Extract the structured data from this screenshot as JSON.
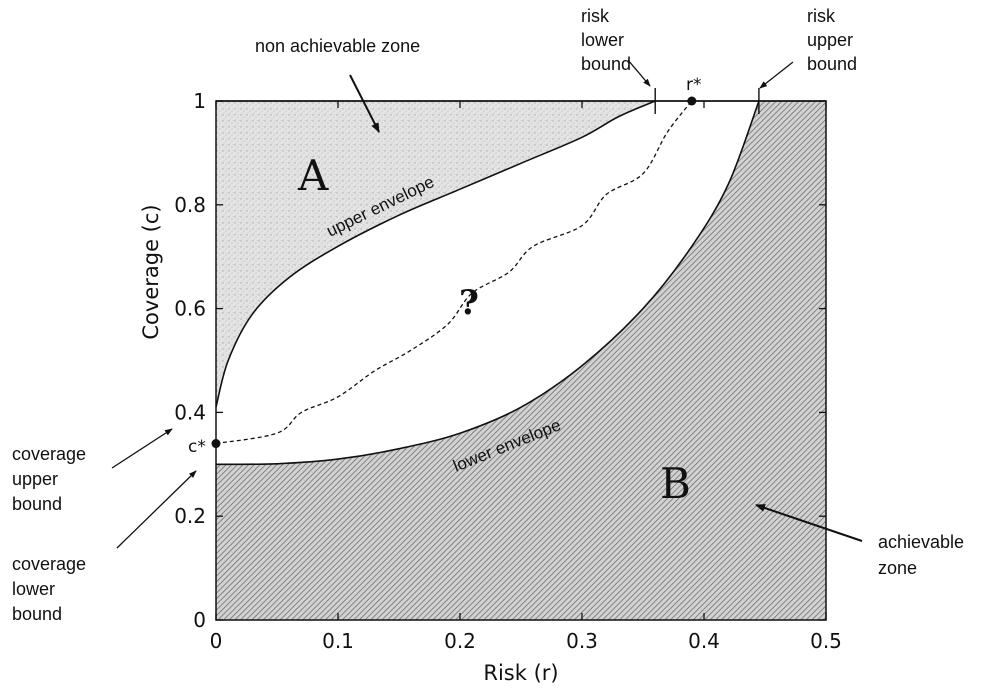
{
  "chart_data": {
    "type": "area",
    "xlabel": "Risk (r)",
    "ylabel": "Coverage (c)",
    "xlim": [
      0,
      0.5
    ],
    "ylim": [
      0,
      1
    ],
    "x_ticks": [
      "0",
      "0.1",
      "0.2",
      "0.3",
      "0.4",
      "0.5"
    ],
    "y_ticks": [
      "0",
      "0.2",
      "0.4",
      "0.6",
      "0.8",
      "1"
    ],
    "zones": [
      {
        "letter": "A",
        "name": "non achievable zone"
      },
      {
        "letter": "B",
        "name": "achievable zone"
      }
    ],
    "upper_envelope": {
      "label": "upper envelope",
      "points": [
        [
          0.0,
          0.41
        ],
        [
          0.01,
          0.5
        ],
        [
          0.03,
          0.59
        ],
        [
          0.06,
          0.66
        ],
        [
          0.1,
          0.72
        ],
        [
          0.15,
          0.78
        ],
        [
          0.2,
          0.83
        ],
        [
          0.25,
          0.88
        ],
        [
          0.3,
          0.93
        ],
        [
          0.33,
          0.97
        ],
        [
          0.36,
          1.0
        ]
      ]
    },
    "lower_envelope": {
      "label": "lower envelope",
      "points": [
        [
          0.0,
          0.3
        ],
        [
          0.05,
          0.301
        ],
        [
          0.1,
          0.31
        ],
        [
          0.15,
          0.33
        ],
        [
          0.2,
          0.36
        ],
        [
          0.25,
          0.41
        ],
        [
          0.3,
          0.49
        ],
        [
          0.35,
          0.6
        ],
        [
          0.39,
          0.72
        ],
        [
          0.42,
          0.84
        ],
        [
          0.445,
          1.0
        ]
      ]
    },
    "path": {
      "label": "?",
      "points": [
        [
          0.0,
          0.34
        ],
        [
          0.05,
          0.36
        ],
        [
          0.07,
          0.4
        ],
        [
          0.1,
          0.43
        ],
        [
          0.13,
          0.48
        ],
        [
          0.16,
          0.52
        ],
        [
          0.19,
          0.57
        ],
        [
          0.21,
          0.63
        ],
        [
          0.24,
          0.67
        ],
        [
          0.26,
          0.72
        ],
        [
          0.3,
          0.76
        ],
        [
          0.32,
          0.82
        ],
        [
          0.35,
          0.86
        ],
        [
          0.37,
          0.94
        ],
        [
          0.39,
          1.0
        ]
      ]
    },
    "special_points": [
      {
        "label": "c*",
        "x": 0.0,
        "y": 0.34
      },
      {
        "label": "r*",
        "x": 0.39,
        "y": 1.0
      }
    ],
    "bound_markers": [
      {
        "label": "risk lower bound",
        "x": 0.36,
        "y": 1.0
      },
      {
        "label": "risk upper bound",
        "x": 0.445,
        "y": 1.0
      }
    ],
    "grid": false
  },
  "annotations": {
    "non_achievable_zone": "non achievable zone",
    "achievable_zone": [
      "achievable",
      "zone"
    ],
    "risk_lower_bound": [
      "risk",
      "lower",
      "bound"
    ],
    "risk_upper_bound": [
      "risk",
      "upper",
      "bound"
    ],
    "coverage_upper_bound": [
      "coverage",
      "upper",
      "bound"
    ],
    "coverage_lower_bound": [
      "coverage",
      "lower",
      "bound"
    ]
  }
}
